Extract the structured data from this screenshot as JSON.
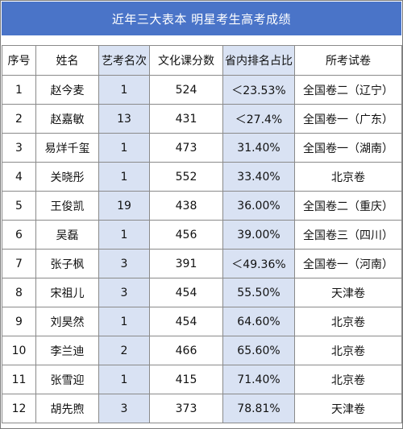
{
  "title": "近年三大表本 明星考生高考成绩",
  "headers": [
    "序号",
    "姓名",
    "艺考名次",
    "文化课分数",
    "省内排名占比",
    "所考试卷"
  ],
  "rows": [
    {
      "no": "1",
      "name": "赵今麦",
      "rank": "1",
      "score": "524",
      "pct": "＜23.53%",
      "paper": "全国卷二（辽宁）"
    },
    {
      "no": "2",
      "name": "赵嘉敏",
      "rank": "13",
      "score": "431",
      "pct": "＜27.4%",
      "paper": "全国卷一（广东）"
    },
    {
      "no": "3",
      "name": "易烊千玺",
      "rank": "1",
      "score": "473",
      "pct": "31.40%",
      "paper": "全国卷一（湖南）"
    },
    {
      "no": "4",
      "name": "关晓彤",
      "rank": "1",
      "score": "552",
      "pct": "33.40%",
      "paper": "北京卷"
    },
    {
      "no": "5",
      "name": "王俊凯",
      "rank": "19",
      "score": "438",
      "pct": "36.00%",
      "paper": "全国卷二（重庆）"
    },
    {
      "no": "6",
      "name": "吴磊",
      "rank": "1",
      "score": "456",
      "pct": "39.00%",
      "paper": "全国卷三（四川）"
    },
    {
      "no": "7",
      "name": "张子枫",
      "rank": "3",
      "score": "391",
      "pct": "＜49.36%",
      "paper": "全国卷一（河南）"
    },
    {
      "no": "8",
      "name": "宋祖儿",
      "rank": "3",
      "score": "454",
      "pct": "55.50%",
      "paper": "天津卷"
    },
    {
      "no": "9",
      "name": "刘昊然",
      "rank": "1",
      "score": "454",
      "pct": "64.60%",
      "paper": "北京卷"
    },
    {
      "no": "10",
      "name": "李兰迪",
      "rank": "2",
      "score": "466",
      "pct": "65.60%",
      "paper": "北京卷"
    },
    {
      "no": "11",
      "name": "张雪迎",
      "rank": "1",
      "score": "415",
      "pct": "71.40%",
      "paper": "北京卷"
    },
    {
      "no": "12",
      "name": "胡先煦",
      "rank": "3",
      "score": "373",
      "pct": "78.81%",
      "paper": "天津卷"
    }
  ],
  "colors": {
    "title_background": "#4a74c8",
    "shaded_column": "#d9e2f3",
    "border": "#8a8a8a"
  }
}
